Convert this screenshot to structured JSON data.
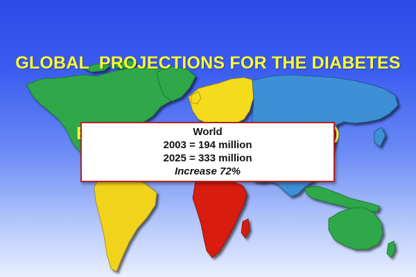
{
  "title": {
    "line1": "GLOBAL  PROJECTIONS FOR THE DIABETES",
    "line2": "EPIDEMIC: 2003-2025 (millions)"
  },
  "callout": {
    "region": "World",
    "line_2003": "2003 = 194 million",
    "line_2025": "2025 = 333 million",
    "increase": "Increase 72%"
  },
  "colors": {
    "background_top": "#2e4be6",
    "background_bottom": "#e9efff",
    "title_text": "#ffff33",
    "north_america": "#2ea84a",
    "south_america": "#f2d31b",
    "europe": "#f4dc1c",
    "africa": "#d81e08",
    "asia": "#3d8fd6",
    "southeast_asia_oceania": "#2ea84a",
    "callout_border": "#b52121"
  }
}
